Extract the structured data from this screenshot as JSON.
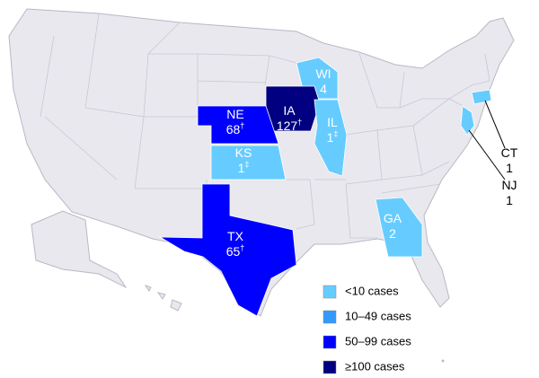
{
  "states": [
    {
      "abbr": "WI",
      "count": "4",
      "mark": null,
      "color": "#66ccff"
    },
    {
      "abbr": "IA",
      "count": "127",
      "mark": "†",
      "color": "#000080"
    },
    {
      "abbr": "NE",
      "count": "68",
      "mark": "†",
      "color": "#0000ff"
    },
    {
      "abbr": "IL",
      "count": "1",
      "mark": "‡",
      "color": "#66ccff"
    },
    {
      "abbr": "KS",
      "count": "1",
      "mark": "‡",
      "color": "#66ccff"
    },
    {
      "abbr": "TX",
      "count": "65",
      "mark": "†",
      "color": "#0000ff"
    },
    {
      "abbr": "GA",
      "count": "2",
      "mark": null,
      "color": "#66ccff"
    },
    {
      "abbr": "CT",
      "count": "1",
      "mark": null,
      "color": "#66ccff"
    },
    {
      "abbr": "NJ",
      "count": "1",
      "mark": null,
      "color": "#66ccff"
    }
  ],
  "legend": [
    {
      "label": "<10 cases",
      "color": "#66ccff"
    },
    {
      "label": "10–49 cases",
      "color": "#3399ff"
    },
    {
      "label": "50–99 cases",
      "color": "#0000ff"
    },
    {
      "label": "≥100 cases",
      "color": "#000080"
    }
  ]
}
